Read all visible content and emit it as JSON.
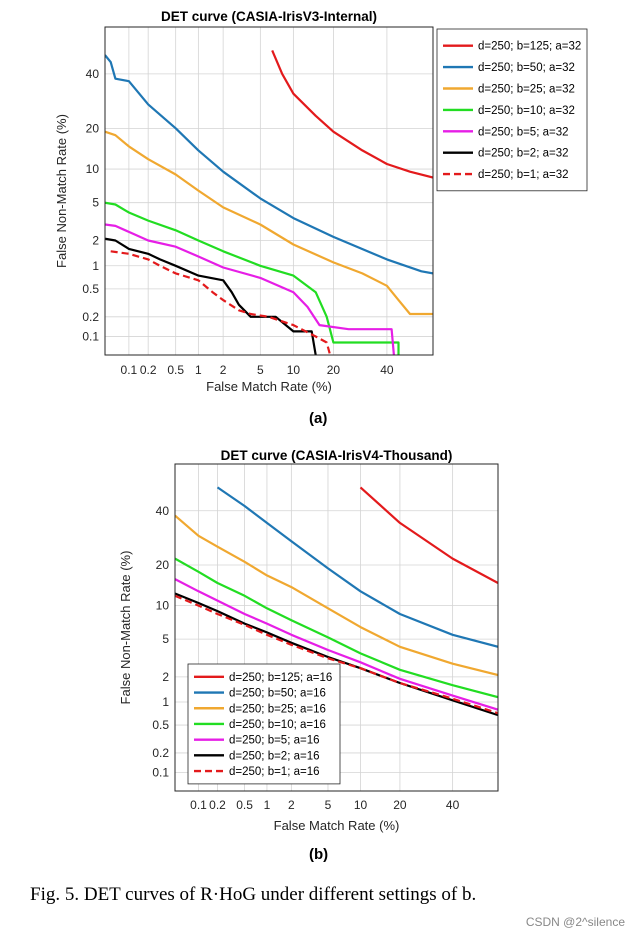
{
  "chart_data": [
    {
      "type": "line",
      "title": "DET curve (CASIA-IrisV3-Internal)",
      "xlabel": "False Match Rate (%)",
      "ylabel": "False Non-Match Rate (%)",
      "x_scale": "probit",
      "y_scale": "probit",
      "xlim": [
        0.04,
        60
      ],
      "ylim": [
        0.05,
        60
      ],
      "xticks": [
        0.1,
        0.2,
        0.5,
        1,
        2,
        5,
        10,
        20,
        40
      ],
      "xtick_labels": [
        "0.1",
        "0.2",
        "0.5",
        "1",
        "2",
        "5",
        "10",
        "20",
        "40"
      ],
      "yticks": [
        0.1,
        0.2,
        0.5,
        1,
        2,
        5,
        10,
        20,
        40
      ],
      "ytick_labels": [
        "0.1",
        "0.2",
        "0.5",
        "1",
        "2",
        "5",
        "10",
        "20",
        "40"
      ],
      "grid": true,
      "legend_position": "top-right",
      "series": [
        {
          "name": "d=250; b=125; a=32",
          "color": "#e31a1c",
          "dash": false,
          "x": [
            6.5,
            8,
            10,
            15,
            20,
            30,
            40,
            50,
            60
          ],
          "y": [
            50,
            40,
            32,
            24,
            19,
            14,
            11,
            9.5,
            8.5
          ]
        },
        {
          "name": "d=250; b=50; a=32",
          "color": "#1f77b4",
          "dash": false,
          "x": [
            0.04,
            0.05,
            0.06,
            0.1,
            0.2,
            0.5,
            1,
            2,
            5,
            10,
            20,
            40,
            55,
            60
          ],
          "y": [
            48,
            45,
            38,
            37,
            28,
            20,
            14,
            9.5,
            5.5,
            3.5,
            2.2,
            1.2,
            0.85,
            0.8
          ]
        },
        {
          "name": "d=250; b=25; a=32",
          "color": "#f0a830",
          "dash": false,
          "x": [
            0.04,
            0.06,
            0.1,
            0.2,
            0.5,
            1,
            2,
            5,
            10,
            20,
            30,
            40,
            45,
            50,
            60
          ],
          "y": [
            19,
            18,
            15,
            12,
            9,
            6.5,
            4.5,
            3,
            1.8,
            1.1,
            0.8,
            0.55,
            0.35,
            0.22,
            0.22
          ]
        },
        {
          "name": "d=250; b=10; a=32",
          "color": "#22dd22",
          "dash": false,
          "x": [
            0.04,
            0.06,
            0.1,
            0.2,
            0.5,
            1,
            2,
            5,
            10,
            15,
            18,
            20,
            30,
            45,
            45
          ],
          "y": [
            5,
            4.8,
            4,
            3.3,
            2.6,
            2,
            1.5,
            1,
            0.75,
            0.45,
            0.2,
            0.08,
            0.08,
            0.08,
            0.05
          ]
        },
        {
          "name": "d=250; b=5; a=32",
          "color": "#e61ee6",
          "dash": false,
          "x": [
            0.04,
            0.06,
            0.1,
            0.2,
            0.5,
            1,
            2,
            5,
            10,
            13,
            16,
            25,
            42,
            43
          ],
          "y": [
            3,
            2.9,
            2.5,
            2,
            1.7,
            1.3,
            0.95,
            0.7,
            0.45,
            0.28,
            0.15,
            0.13,
            0.13,
            0.05
          ]
        },
        {
          "name": "d=250; b=2; a=32",
          "color": "#000000",
          "dash": false,
          "x": [
            0.04,
            0.06,
            0.1,
            0.2,
            0.3,
            0.5,
            1,
            2,
            2.5,
            3,
            4,
            7,
            10,
            14,
            15
          ],
          "y": [
            2.1,
            2.0,
            1.6,
            1.4,
            1.2,
            1.0,
            0.75,
            0.65,
            0.45,
            0.3,
            0.2,
            0.2,
            0.12,
            0.12,
            0.05
          ]
        },
        {
          "name": "d=250; b=1; a=32",
          "color": "#e31a1c",
          "dash": true,
          "x": [
            0.05,
            0.1,
            0.2,
            0.3,
            0.5,
            1,
            1.5,
            2,
            3,
            4,
            6,
            10,
            15,
            18,
            19
          ],
          "y": [
            1.5,
            1.4,
            1.2,
            1.0,
            0.8,
            0.65,
            0.45,
            0.35,
            0.25,
            0.22,
            0.2,
            0.15,
            0.1,
            0.08,
            0.05
          ]
        }
      ]
    },
    {
      "type": "line",
      "title": "DET curve (CASIA-IrisV4-Thousand)",
      "xlabel": "False Match Rate (%)",
      "ylabel": "False Non-Match Rate (%)",
      "x_scale": "probit",
      "y_scale": "probit",
      "xlim": [
        0.04,
        60
      ],
      "ylim": [
        0.05,
        60
      ],
      "xticks": [
        0.1,
        0.2,
        0.5,
        1,
        2,
        5,
        10,
        20,
        40
      ],
      "xtick_labels": [
        "0.1",
        "0.2",
        "0.5",
        "1",
        "2",
        "5",
        "10",
        "20",
        "40"
      ],
      "yticks": [
        0.1,
        0.2,
        0.5,
        1,
        2,
        5,
        10,
        20,
        40
      ],
      "ytick_labels": [
        "0.1",
        "0.2",
        "0.5",
        "1",
        "2",
        "5",
        "10",
        "20",
        "40"
      ],
      "grid": true,
      "legend_position": "bottom-left",
      "series": [
        {
          "name": "d=250; b=125; a=16",
          "color": "#e31a1c",
          "dash": false,
          "x": [
            10,
            20,
            40,
            60
          ],
          "y": [
            50,
            35,
            22,
            15
          ]
        },
        {
          "name": "d=250; b=50; a=16",
          "color": "#1f77b4",
          "dash": false,
          "x": [
            0.2,
            0.5,
            1,
            2,
            5,
            10,
            20,
            40,
            60
          ],
          "y": [
            50,
            42,
            35,
            28,
            19,
            13,
            8.5,
            5.5,
            4.2
          ]
        },
        {
          "name": "d=250; b=25; a=16",
          "color": "#f0a830",
          "dash": false,
          "x": [
            0.04,
            0.1,
            0.2,
            0.5,
            1,
            2,
            5,
            10,
            20,
            40,
            60
          ],
          "y": [
            38,
            30,
            26,
            21,
            17,
            14,
            9.5,
            6.5,
            4.2,
            2.8,
            2.1
          ]
        },
        {
          "name": "d=250; b=10; a=16",
          "color": "#22dd22",
          "dash": false,
          "x": [
            0.04,
            0.1,
            0.2,
            0.5,
            1,
            2,
            5,
            10,
            20,
            40,
            60
          ],
          "y": [
            22,
            18,
            15,
            12,
            9.5,
            7.5,
            5.2,
            3.6,
            2.4,
            1.6,
            1.15
          ]
        },
        {
          "name": "d=250; b=5; a=16",
          "color": "#e61ee6",
          "dash": false,
          "x": [
            0.04,
            0.1,
            0.2,
            0.5,
            1,
            2,
            5,
            10,
            20,
            40,
            60
          ],
          "y": [
            16,
            13,
            11,
            8.5,
            7,
            5.5,
            3.9,
            2.9,
            1.9,
            1.2,
            0.8
          ]
        },
        {
          "name": "d=250; b=2; a=16",
          "color": "#000000",
          "dash": false,
          "x": [
            0.04,
            0.1,
            0.2,
            0.5,
            1,
            2,
            5,
            10,
            20,
            40,
            60
          ],
          "y": [
            12.5,
            10.5,
            9,
            7,
            5.8,
            4.6,
            3.3,
            2.5,
            1.7,
            1.05,
            0.68
          ]
        },
        {
          "name": "d=250; b=1; a=16",
          "color": "#e31a1c",
          "dash": true,
          "x": [
            0.04,
            0.1,
            0.2,
            0.5,
            1,
            2,
            5,
            10,
            20,
            40,
            60
          ],
          "y": [
            12,
            10,
            8.5,
            6.8,
            5.5,
            4.4,
            3.2,
            2.5,
            1.7,
            1.1,
            0.72
          ]
        }
      ]
    }
  ],
  "subcaptions": [
    "(a)",
    "(b)"
  ],
  "caption": "Fig. 5.   DET curves of R·HoG under different settings of b.",
  "watermark": "CSDN @2^silence"
}
